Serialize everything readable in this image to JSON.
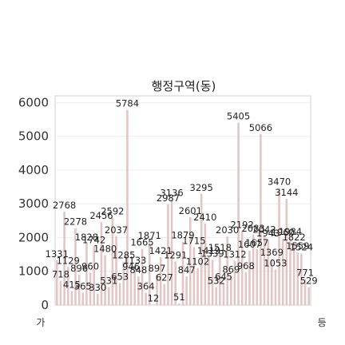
{
  "chart_data": {
    "type": "bar",
    "title": "행정구역(동)",
    "xlabel": "",
    "ylabel": "",
    "ylim": [
      0,
      6200
    ],
    "yticks": [
      0,
      1000,
      2000,
      3000,
      4000,
      5000,
      6000
    ],
    "grid": true,
    "x_tick_labels_visible": [
      "가",
      "등"
    ],
    "values": [
      1331,
      718,
      2768,
      1129,
      415,
      2278,
      896,
      365,
      1828,
      960,
      1742,
      330,
      2456,
      1480,
      531,
      2592,
      2037,
      653,
      1285,
      5784,
      946,
      1133,
      848,
      1665,
      364,
      1871,
      12,
      897,
      1421,
      627,
      2987,
      3136,
      1291,
      51,
      1879,
      847,
      2601,
      1715,
      1102,
      3295,
      2410,
      1419,
      1339,
      532,
      1518,
      645,
      2030,
      869,
      1312,
      5405,
      2192,
      968,
      1607,
      2083,
      1657,
      5066,
      2042,
      1943,
      1369,
      1053,
      3470,
      1960,
      3144,
      1984,
      1822,
      1559,
      1524,
      771,
      529
    ],
    "color": "#e3c5c5"
  }
}
